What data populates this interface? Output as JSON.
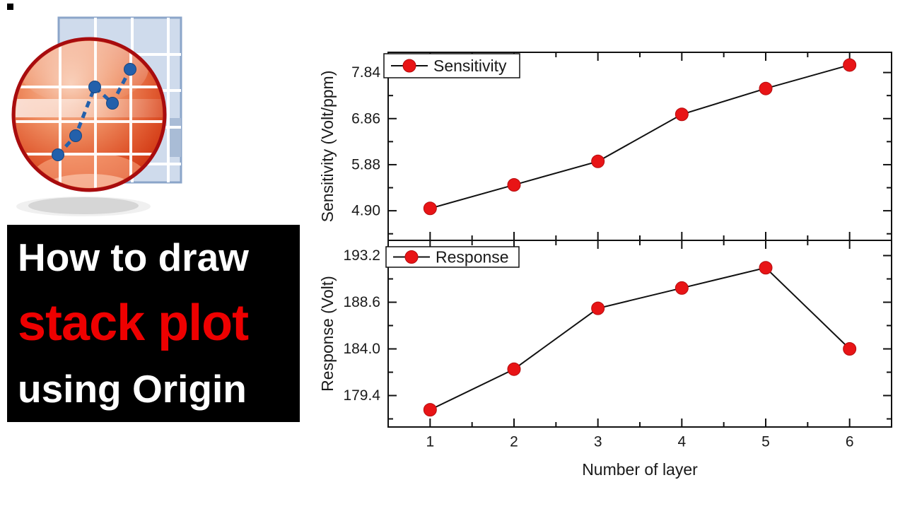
{
  "theme": {
    "background": "#ffffff",
    "banner_bg": "#000000",
    "banner_text": "#ffffff",
    "banner_accent": "#ee0000",
    "marker_red": "#e81416",
    "marker_edge": "#b50d0f",
    "plot_line": "#111111",
    "axis_text": "#1a1a1a",
    "logo_blue": "#2360ab",
    "logo_blue_dark": "#17457f",
    "logo_grid_fill": "#cfdbec",
    "logo_grid_border": "#8ba5c9",
    "logo_grid_cell": "#a9bcd6",
    "logo_sphere_rim": "#a80c0e"
  },
  "icons": {
    "logo": "origin-logo"
  },
  "banner": {
    "line1": "How to draw",
    "line2": "stack plot",
    "line3": "using Origin"
  },
  "chart_data": [
    {
      "type": "line",
      "panel": "top",
      "title": "",
      "xlabel": "",
      "ylabel": "Sensitivity (Volt/ppm)",
      "legend": {
        "label": "Sensitivity",
        "position": "top-left"
      },
      "x": [
        1,
        2,
        3,
        4,
        5,
        6
      ],
      "series": [
        {
          "name": "Sensitivity",
          "values": [
            4.95,
            5.45,
            5.95,
            6.95,
            7.5,
            8.0
          ]
        }
      ],
      "xlim": [
        0.5,
        6.5
      ],
      "ylim": [
        4.27,
        8.27
      ],
      "yticks": [
        "4.90",
        "5.88",
        "6.86",
        "7.84"
      ],
      "xticks": [
        "1",
        "2",
        "3",
        "4",
        "5",
        "6"
      ],
      "x_tick_labels_visible": false,
      "grid": false,
      "frame": "box-with-inward-ticks"
    },
    {
      "type": "line",
      "panel": "bottom",
      "title": "",
      "xlabel": "Number of layer",
      "ylabel": "Response (Volt)",
      "legend": {
        "label": "Response",
        "position": "top-left"
      },
      "x": [
        1,
        2,
        3,
        4,
        5,
        6
      ],
      "series": [
        {
          "name": "Response",
          "values": [
            178,
            182,
            188,
            190,
            192,
            184
          ]
        }
      ],
      "xlim": [
        0.5,
        6.5
      ],
      "ylim": [
        176.3,
        194.7
      ],
      "yticks": [
        "179.4",
        "184.0",
        "188.6",
        "193.2"
      ],
      "xticks": [
        "1",
        "2",
        "3",
        "4",
        "5",
        "6"
      ],
      "x_tick_labels_visible": true,
      "grid": false,
      "frame": "box-with-inward-ticks"
    }
  ]
}
